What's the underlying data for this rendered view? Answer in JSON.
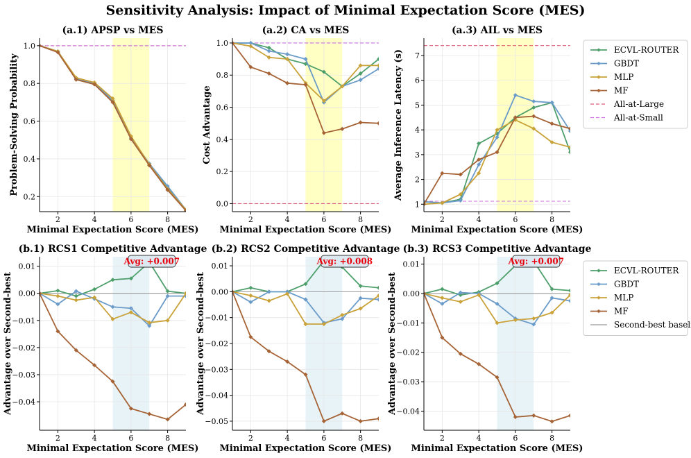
{
  "suptitle": "Sensitivity Analysis: Impact of Minimal Expectation Score (MES)",
  "colors": {
    "ECVL-ROUTER": "#4e9f6c",
    "GBDT": "#6a9bc9",
    "MLP": "#c9a23a",
    "MF": "#a66336",
    "All-at-Large": "#e05a7a",
    "All-at-Small": "#c86ee0",
    "Second-best baseline": "#999999",
    "highlight_top": "#ffffb8",
    "highlight_bottom": "#e6f2f7",
    "avg_text": "#e8000b",
    "avg_box": "#dde9f1"
  },
  "legends": {
    "top": [
      "ECVL-ROUTER",
      "GBDT",
      "MLP",
      "MF",
      "All-at-Large",
      "All-at-Small"
    ],
    "bottom": [
      "ECVL-ROUTER",
      "GBDT",
      "MLP",
      "MF",
      "Second-best baseline"
    ]
  },
  "chart_data": [
    {
      "id": "a1",
      "type": "line",
      "title": "(a.1) APSP vs MES",
      "xlabel": "Minimal Expectation Score (MES)",
      "ylabel": "Problem-Solving Probability",
      "xlim": [
        1,
        9
      ],
      "ylim": [
        0.12,
        1.04
      ],
      "xticks": [
        2,
        4,
        6,
        8
      ],
      "yticks": [
        0.2,
        0.4,
        0.6,
        0.8,
        1.0
      ],
      "ytick_labels": [
        "0.2",
        "0.4",
        "0.6",
        "0.8",
        "1.0"
      ],
      "highlight": [
        5,
        7
      ],
      "x": [
        1,
        2,
        3,
        4,
        5,
        6,
        7,
        8,
        9
      ],
      "series": [
        {
          "name": "ECVL-ROUTER",
          "values": [
            1.0,
            0.97,
            0.825,
            0.8,
            0.71,
            0.51,
            0.37,
            0.245,
            0.13
          ]
        },
        {
          "name": "GBDT",
          "values": [
            1.0,
            0.97,
            0.825,
            0.8,
            0.71,
            0.51,
            0.375,
            0.255,
            0.13
          ]
        },
        {
          "name": "MLP",
          "values": [
            1.0,
            0.97,
            0.83,
            0.805,
            0.72,
            0.52,
            0.37,
            0.24,
            0.13
          ]
        },
        {
          "name": "MF",
          "values": [
            1.0,
            0.965,
            0.82,
            0.795,
            0.7,
            0.505,
            0.365,
            0.235,
            0.125
          ]
        }
      ],
      "hlines": [
        {
          "name": "All-at-Large",
          "y": 1.0
        },
        {
          "name": "All-at-Small",
          "y": 1.0
        }
      ]
    },
    {
      "id": "a2",
      "type": "line",
      "title": "(a.2) CA vs MES",
      "xlabel": "Minimal Expectation Score (MES)",
      "ylabel": "Cost Advantage",
      "xlim": [
        1,
        9
      ],
      "ylim": [
        -0.05,
        1.03
      ],
      "xticks": [
        2,
        4,
        6,
        8
      ],
      "yticks": [
        0.0,
        0.2,
        0.4,
        0.6,
        0.8,
        1.0
      ],
      "ytick_labels": [
        "0.0",
        "0.2",
        "0.4",
        "0.6",
        "0.8",
        "1.0"
      ],
      "highlight": [
        5,
        7
      ],
      "x": [
        1,
        2,
        3,
        4,
        5,
        6,
        7,
        8,
        9
      ],
      "series": [
        {
          "name": "ECVL-ROUTER",
          "values": [
            1.0,
            1.0,
            0.97,
            0.9,
            0.87,
            0.82,
            0.73,
            0.81,
            0.9
          ]
        },
        {
          "name": "GBDT",
          "values": [
            1.0,
            1.0,
            0.95,
            0.93,
            0.9,
            0.63,
            0.73,
            0.77,
            0.84
          ]
        },
        {
          "name": "MLP",
          "values": [
            1.0,
            0.98,
            0.91,
            0.9,
            0.75,
            0.64,
            0.73,
            0.86,
            0.86
          ]
        },
        {
          "name": "MF",
          "values": [
            1.0,
            0.85,
            0.81,
            0.75,
            0.74,
            0.44,
            0.465,
            0.505,
            0.5
          ]
        }
      ],
      "hlines": [
        {
          "name": "All-at-Small",
          "y": 1.0
        },
        {
          "name": "All-at-Large",
          "y": 0.0
        }
      ]
    },
    {
      "id": "a3",
      "type": "line",
      "title": "(a.3) AIL vs MES",
      "xlabel": "Minimal Expectation Score (MES)",
      "ylabel": "Average Inference Latency (s)",
      "xlim": [
        1,
        9
      ],
      "ylim": [
        0.7,
        7.7
      ],
      "xticks": [
        2,
        4,
        6,
        8
      ],
      "yticks": [
        1,
        2,
        3,
        4,
        5,
        6,
        7
      ],
      "ytick_labels": [
        "1",
        "2",
        "3",
        "4",
        "5",
        "6",
        "7"
      ],
      "highlight": [
        5,
        7
      ],
      "x": [
        1,
        2,
        3,
        4,
        5,
        6,
        7,
        8,
        9
      ],
      "series": [
        {
          "name": "ECVL-ROUTER",
          "values": [
            1.1,
            1.05,
            1.2,
            3.45,
            3.85,
            4.5,
            4.9,
            5.1,
            3.1
          ]
        },
        {
          "name": "GBDT",
          "values": [
            1.1,
            1.05,
            1.15,
            2.6,
            3.7,
            5.4,
            5.15,
            5.1,
            3.95
          ]
        },
        {
          "name": "MLP",
          "values": [
            1.0,
            1.05,
            1.4,
            2.25,
            4.0,
            4.4,
            4.05,
            3.5,
            3.3
          ]
        },
        {
          "name": "MF",
          "values": [
            1.0,
            2.25,
            2.2,
            2.8,
            3.1,
            4.5,
            4.55,
            4.25,
            4.05
          ]
        }
      ],
      "hlines": [
        {
          "name": "All-at-Large",
          "y": 7.4
        },
        {
          "name": "All-at-Small",
          "y": 1.12
        }
      ]
    },
    {
      "id": "b1",
      "type": "line",
      "title": "(b.1) RCS1 Competitive Advantage",
      "xlabel": "Minimal Expectation Score (MES)",
      "ylabel": "Advantage over Second-best",
      "xlim": [
        1,
        9
      ],
      "ylim": [
        -0.0505,
        0.0135
      ],
      "xticks": [
        2,
        4,
        6,
        8
      ],
      "yticks": [
        -0.04,
        -0.03,
        -0.02,
        -0.01,
        0.0,
        0.01
      ],
      "ytick_labels": [
        "−0.04",
        "−0.03",
        "−0.02",
        "−0.01",
        "0.00",
        "0.01"
      ],
      "highlight": [
        5,
        7
      ],
      "avg_label": "Avg: +0.007",
      "x": [
        1,
        2,
        3,
        4,
        5,
        6,
        7,
        8,
        9
      ],
      "series": [
        {
          "name": "ECVL-ROUTER",
          "values": [
            0.0,
            0.001,
            -0.001,
            0.0015,
            0.005,
            0.0055,
            0.0115,
            0.0008,
            0.0
          ]
        },
        {
          "name": "GBDT",
          "values": [
            0.0,
            -0.004,
            0.0008,
            -0.002,
            -0.005,
            -0.0055,
            -0.012,
            -0.001,
            -0.001
          ]
        },
        {
          "name": "MLP",
          "values": [
            0.0,
            -0.001,
            -0.0025,
            -0.0015,
            -0.0095,
            -0.007,
            -0.0108,
            -0.01,
            0.0
          ]
        },
        {
          "name": "MF",
          "values": [
            0.0,
            -0.014,
            -0.021,
            -0.0265,
            -0.0325,
            -0.0425,
            -0.0445,
            -0.0465,
            -0.041
          ]
        }
      ],
      "hlines": [
        {
          "name": "Second-best baseline",
          "y": 0.0
        }
      ]
    },
    {
      "id": "b2",
      "type": "line",
      "title": "(b.2) RCS2 Competitive Advantage",
      "xlabel": "Minimal Expectation Score (MES)",
      "ylabel": "Advantage over Second-best",
      "xlim": [
        1,
        9
      ],
      "ylim": [
        -0.0535,
        0.0135
      ],
      "xticks": [
        2,
        4,
        6,
        8
      ],
      "yticks": [
        -0.05,
        -0.04,
        -0.03,
        -0.02,
        -0.01,
        0.0,
        0.01
      ],
      "ytick_labels": [
        "−0.05",
        "−0.04",
        "−0.03",
        "−0.02",
        "−0.01",
        "0.00",
        "0.01"
      ],
      "highlight": [
        5,
        7
      ],
      "avg_label": "Avg: +0.008",
      "x": [
        1,
        2,
        3,
        4,
        5,
        6,
        7,
        8,
        9
      ],
      "series": [
        {
          "name": "ECVL-ROUTER",
          "values": [
            0.0,
            0.0015,
            0.0,
            0.0,
            0.003,
            0.012,
            0.0095,
            0.0022,
            0.0015
          ]
        },
        {
          "name": "GBDT",
          "values": [
            0.0,
            -0.004,
            0.0,
            0.0,
            -0.003,
            -0.012,
            -0.0105,
            -0.0025,
            -0.003
          ]
        },
        {
          "name": "MLP",
          "values": [
            0.0,
            -0.0015,
            -0.0035,
            -0.0008,
            -0.0125,
            -0.0125,
            -0.009,
            -0.0065,
            -0.0015
          ]
        },
        {
          "name": "MF",
          "values": [
            0.0,
            -0.0175,
            -0.023,
            -0.027,
            -0.032,
            -0.05,
            -0.047,
            -0.05,
            -0.049
          ]
        }
      ],
      "hlines": [
        {
          "name": "Second-best baseline",
          "y": 0.0
        }
      ]
    },
    {
      "id": "b3",
      "type": "line",
      "title": "(b.3) RCS3 Competitive Advantage",
      "xlabel": "Minimal Expectation Score (MES)",
      "ylabel": "Advantage over Second-best",
      "xlim": [
        1,
        9
      ],
      "ylim": [
        -0.0465,
        0.0125
      ],
      "xticks": [
        2,
        4,
        6,
        8
      ],
      "yticks": [
        -0.04,
        -0.03,
        -0.02,
        -0.01,
        0.0,
        0.01
      ],
      "ytick_labels": [
        "−0.04",
        "−0.03",
        "−0.02",
        "−0.01",
        "0.00",
        "0.01"
      ],
      "highlight": [
        5,
        7
      ],
      "avg_label": "Avg: +0.007",
      "x": [
        1,
        2,
        3,
        4,
        5,
        6,
        7,
        8,
        9
      ],
      "series": [
        {
          "name": "ECVL-ROUTER",
          "values": [
            0.0,
            0.0015,
            -0.0005,
            0.0005,
            0.0035,
            0.0095,
            0.011,
            0.0015,
            0.001
          ]
        },
        {
          "name": "GBDT",
          "values": [
            0.0,
            -0.0035,
            0.0003,
            0.0,
            -0.0035,
            -0.0085,
            -0.0105,
            -0.0015,
            -0.0025
          ]
        },
        {
          "name": "MLP",
          "values": [
            0.0,
            -0.0015,
            -0.0028,
            -0.0005,
            -0.01,
            -0.009,
            -0.0085,
            -0.0065,
            -0.0005
          ]
        },
        {
          "name": "MF",
          "values": [
            0.0,
            -0.015,
            -0.0205,
            -0.024,
            -0.0285,
            -0.042,
            -0.0415,
            -0.0435,
            -0.0415
          ]
        }
      ],
      "hlines": [
        {
          "name": "Second-best baseline",
          "y": 0.0
        }
      ]
    }
  ]
}
